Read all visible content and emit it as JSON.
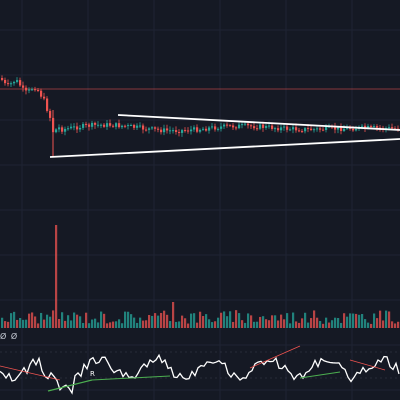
{
  "chart": {
    "background": "#151924",
    "grid_color": "#1f2433",
    "up_color": "#26a69a",
    "down_color": "#ef5350",
    "trendline_color": "#ffffff",
    "resistance_color": "#ef5350",
    "oscillator_color": "#ffffff",
    "divergence_bull_color": "#4caf50",
    "divergence_bear_color": "#ef5350"
  },
  "indicator": {
    "label": "Ø Ø",
    "divergence_marker": "R"
  }
}
